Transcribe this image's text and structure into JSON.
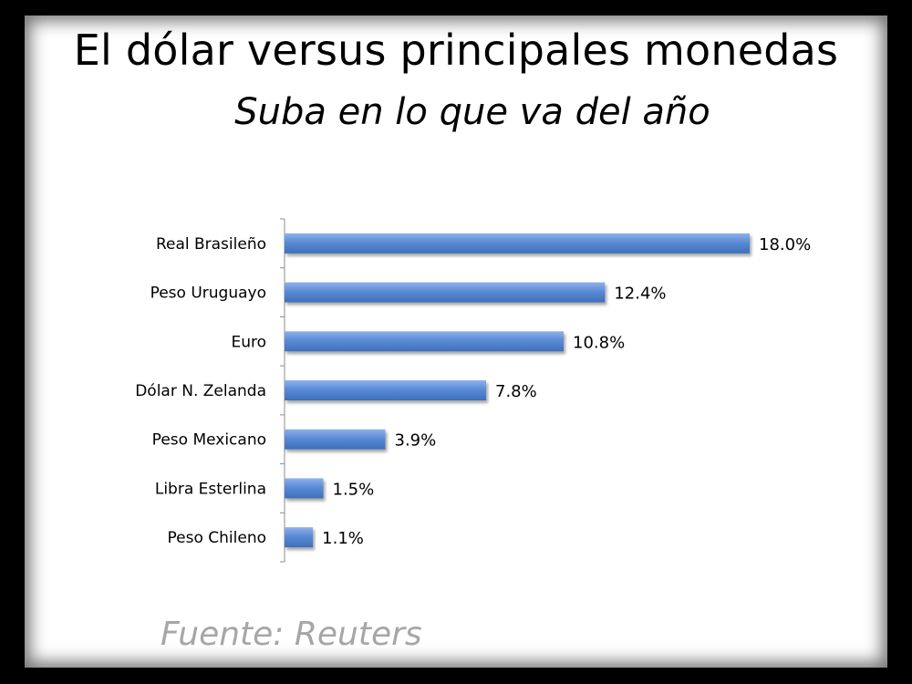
{
  "title": "El dólar versus principales monedas",
  "subtitle": "Suba en lo que va del año",
  "source": "Fuente: Reuters",
  "colors": {
    "bar": "#5b8bd6",
    "bar_dark": "#3f6fb8",
    "source_text": "#a6a6a6"
  },
  "chart_data": {
    "type": "bar",
    "orientation": "horizontal",
    "categories": [
      "Real Brasileño",
      "Peso Uruguayo",
      "Euro",
      "Dólar N. Zelanda",
      "Peso Mexicano",
      "Libra Esterlina",
      "Peso Chileno"
    ],
    "values": [
      18.0,
      12.4,
      10.8,
      7.8,
      3.9,
      1.5,
      1.1
    ],
    "value_labels": [
      "18.0%",
      "12.4%",
      "10.8%",
      "7.8%",
      "3.9%",
      "1.5%",
      "1.1%"
    ],
    "title": "El dólar versus principales monedas",
    "subtitle": "Suba en lo que va del año",
    "xlim": [
      0,
      18.0
    ],
    "grid": false,
    "legend": "none"
  }
}
